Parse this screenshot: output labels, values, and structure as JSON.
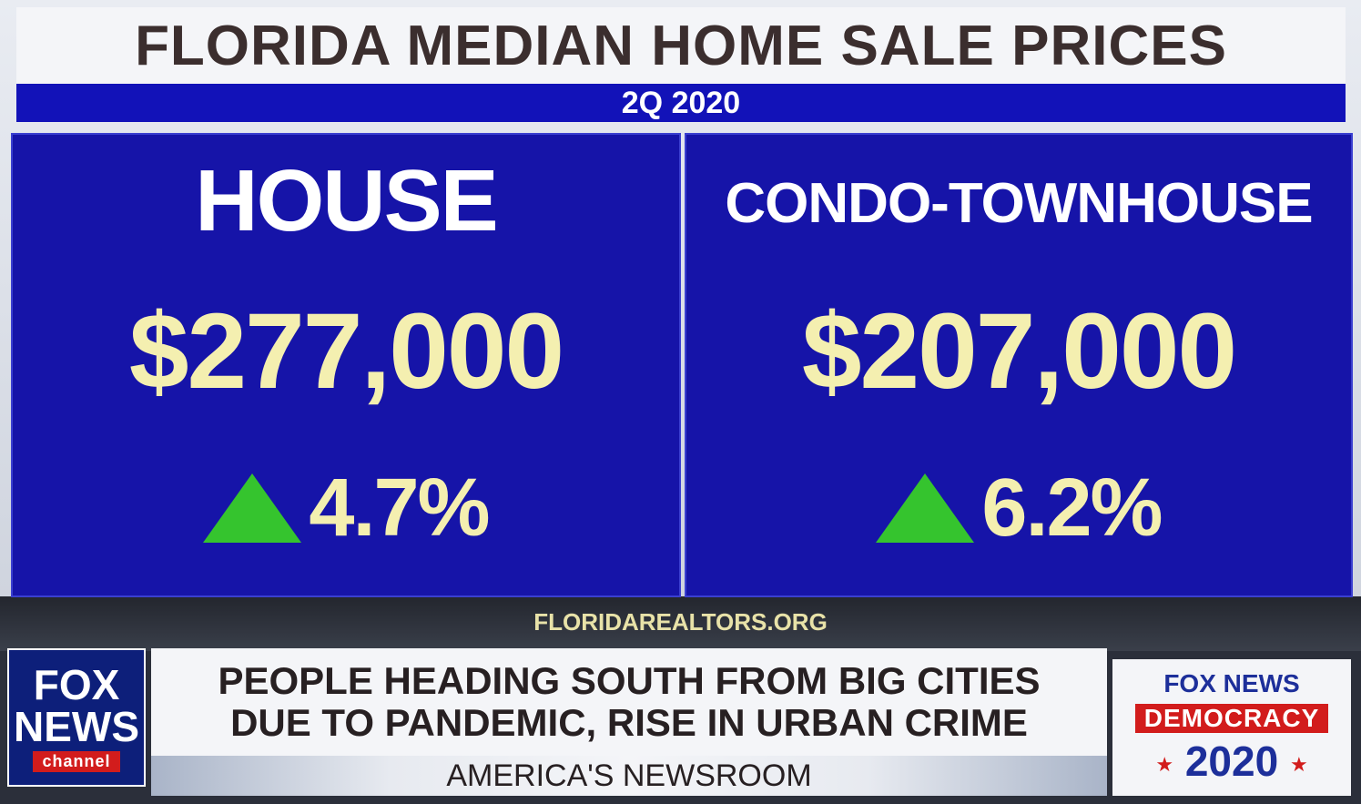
{
  "header": {
    "title": "FLORIDA MEDIAN HOME SALE PRICES",
    "period": "2Q 2020"
  },
  "panels": [
    {
      "label": "HOUSE",
      "price": "$277,000",
      "change": "4.7%"
    },
    {
      "label": "CONDO-TOWNHOUSE",
      "price": "$207,000",
      "change": "6.2%"
    }
  ],
  "source": "FLORIDAREALTORS.ORG",
  "logo": {
    "line1": "FOX",
    "line2": "NEWS",
    "line3": "channel"
  },
  "headline": {
    "line1": "PEOPLE HEADING SOUTH FROM BIG CITIES",
    "line2": "DUE TO PANDEMIC, RISE IN URBAN CRIME"
  },
  "show": "AMERICA'S NEWSROOM",
  "democracy": {
    "brand": "FOX NEWS",
    "label": "DEMOCRACY",
    "year": "2020"
  },
  "colors": {
    "panel_blue": "#1614a8",
    "price_yellow": "#f4efb0",
    "up_green": "#35c42e",
    "brand_red": "#d21c1c"
  },
  "icons": [
    "up-arrow-icon"
  ]
}
